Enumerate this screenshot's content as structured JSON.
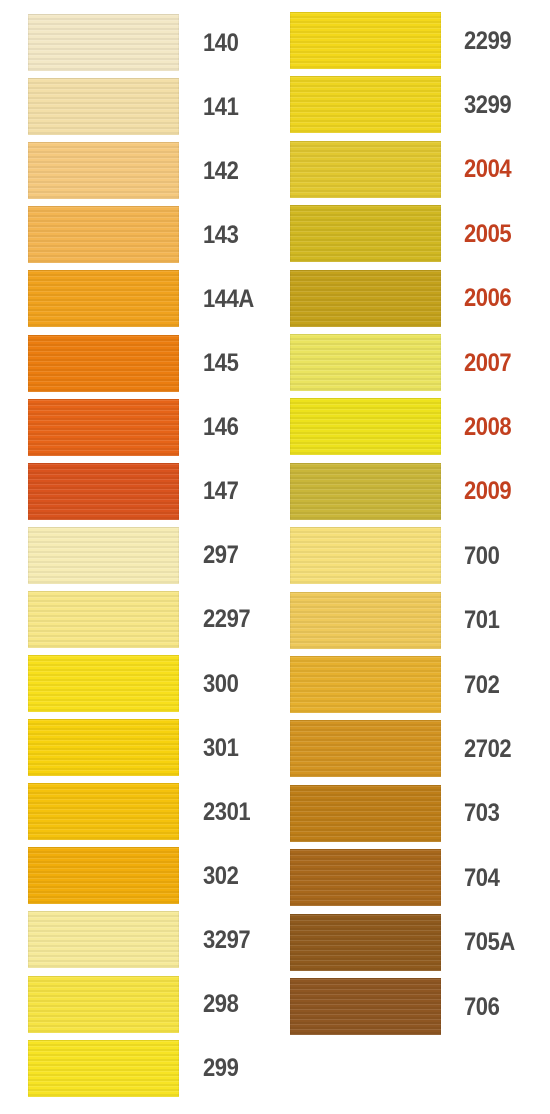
{
  "columns": [
    {
      "items": [
        {
          "label": "140",
          "color": "#f3e8c6",
          "label_color": "#4a4a4a"
        },
        {
          "label": "141",
          "color": "#f3dfa8",
          "label_color": "#4a4a4a"
        },
        {
          "label": "142",
          "color": "#f5c97e",
          "label_color": "#4a4a4a"
        },
        {
          "label": "143",
          "color": "#f3b552",
          "label_color": "#4a4a4a"
        },
        {
          "label": "144A",
          "color": "#f0a21e",
          "label_color": "#4a4a4a"
        },
        {
          "label": "145",
          "color": "#eb7d10",
          "label_color": "#4a4a4a"
        },
        {
          "label": "146",
          "color": "#e66418",
          "label_color": "#4a4a4a"
        },
        {
          "label": "147",
          "color": "#d9531e",
          "label_color": "#4a4a4a"
        },
        {
          "label": "297",
          "color": "#f6ecb4",
          "label_color": "#4a4a4a"
        },
        {
          "label": "2297",
          "color": "#f7e788",
          "label_color": "#4a4a4a"
        },
        {
          "label": "300",
          "color": "#f8e01c",
          "label_color": "#4a4a4a"
        },
        {
          "label": "301",
          "color": "#f7d20e",
          "label_color": "#4a4a4a"
        },
        {
          "label": "2301",
          "color": "#f5c20c",
          "label_color": "#4a4a4a"
        },
        {
          "label": "302",
          "color": "#f1ad0a",
          "label_color": "#4a4a4a"
        },
        {
          "label": "3297",
          "color": "#f6ea9a",
          "label_color": "#4a4a4a"
        },
        {
          "label": "298",
          "color": "#f6e444",
          "label_color": "#4a4a4a"
        },
        {
          "label": "299",
          "color": "#f7e424",
          "label_color": "#4a4a4a"
        }
      ]
    },
    {
      "items": [
        {
          "label": "2299",
          "color": "#f3d81a",
          "label_color": "#4a4a4a"
        },
        {
          "label": "3299",
          "color": "#eed520",
          "label_color": "#4a4a4a"
        },
        {
          "label": "2004",
          "color": "#e1c830",
          "label_color": "#c2401f"
        },
        {
          "label": "2005",
          "color": "#d1b822",
          "label_color": "#c2401f"
        },
        {
          "label": "2006",
          "color": "#c4a21c",
          "label_color": "#c2401f"
        },
        {
          "label": "2007",
          "color": "#eae460",
          "label_color": "#c2401f"
        },
        {
          "label": "2008",
          "color": "#ede21c",
          "label_color": "#c2401f"
        },
        {
          "label": "2009",
          "color": "#c9b63a",
          "label_color": "#c2401f"
        },
        {
          "label": "700",
          "color": "#f6e07a",
          "label_color": "#4a4a4a"
        },
        {
          "label": "701",
          "color": "#eec95a",
          "label_color": "#4a4a4a"
        },
        {
          "label": "702",
          "color": "#e6b02e",
          "label_color": "#4a4a4a"
        },
        {
          "label": "2702",
          "color": "#d39422",
          "label_color": "#4a4a4a"
        },
        {
          "label": "703",
          "color": "#be7e18",
          "label_color": "#4a4a4a"
        },
        {
          "label": "704",
          "color": "#a8681c",
          "label_color": "#4a4a4a"
        },
        {
          "label": "705A",
          "color": "#8f5a1e",
          "label_color": "#4a4a4a"
        },
        {
          "label": "706",
          "color": "#8e5622",
          "label_color": "#4a4a4a"
        }
      ]
    }
  ]
}
